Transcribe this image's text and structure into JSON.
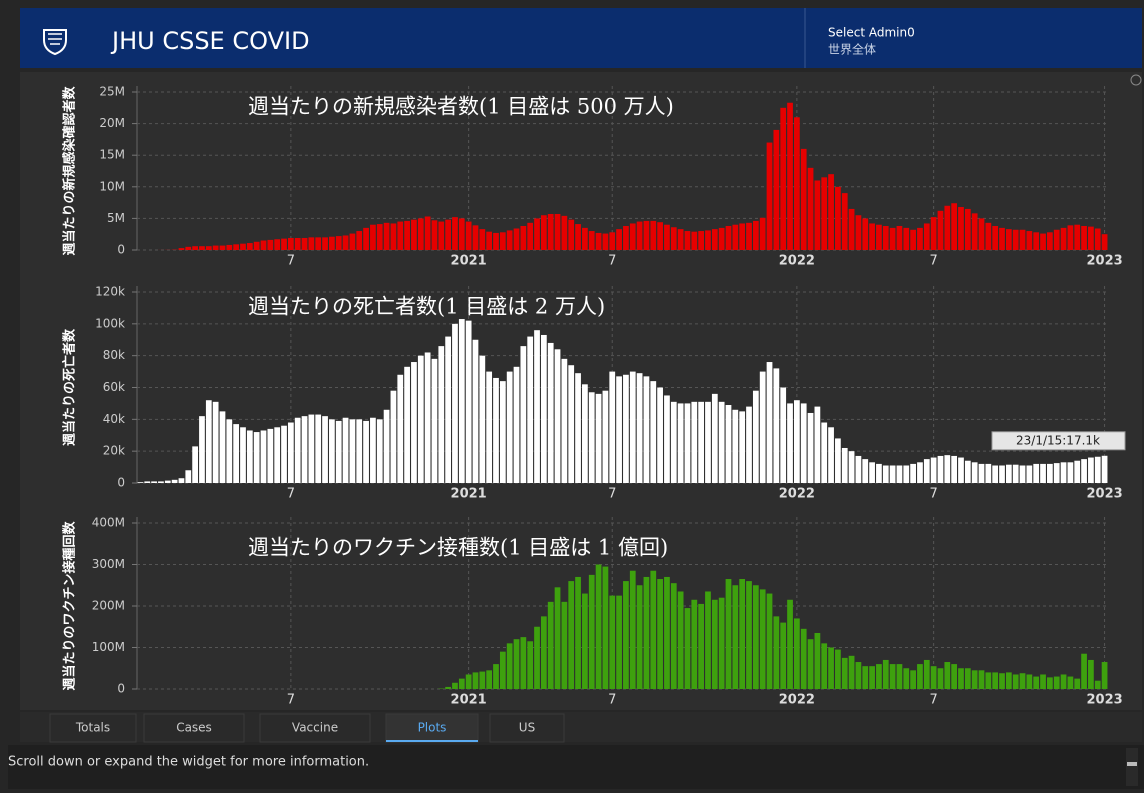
{
  "header": {
    "title": "JHU CSSE COVID",
    "selector_label": "Select Admin0",
    "selector_value": "世界全体"
  },
  "tabs": [
    "Totals",
    "Cases",
    "Vaccine",
    "Plots",
    "US"
  ],
  "active_tab": 3,
  "footer": "Scroll down or expand the widget for more information.",
  "chart_data": [
    {
      "type": "bar",
      "title": "週当たりの新規感染者数(1 目盛は 500 万人)",
      "y_label": "週当たりの新規感染確認者数",
      "color": "#e60000",
      "grid": true,
      "categories": [
        null,
        null,
        null,
        null,
        null,
        null,
        null,
        null,
        null,
        null,
        null,
        null,
        null,
        null,
        null,
        null,
        null,
        null,
        null,
        null,
        null,
        null,
        "7",
        null,
        null,
        null,
        null,
        null,
        null,
        null,
        null,
        null,
        null,
        null,
        null,
        null,
        null,
        null,
        null,
        null,
        null,
        null,
        null,
        null,
        null,
        null,
        null,
        null,
        "2021",
        null,
        null,
        null,
        null,
        null,
        null,
        null,
        null,
        null,
        null,
        null,
        null,
        null,
        null,
        null,
        null,
        null,
        null,
        null,
        null,
        "7",
        null,
        null,
        null,
        null,
        null,
        null,
        null,
        null,
        null,
        null,
        null,
        null,
        null,
        null,
        null,
        null,
        null,
        null,
        null,
        null,
        null,
        null,
        null,
        null,
        null,
        null,
        "2022",
        null,
        null,
        null,
        null,
        null,
        null,
        null,
        null,
        null,
        null,
        null,
        null,
        null,
        null,
        null,
        null,
        null,
        null,
        null,
        "7",
        null,
        null,
        null,
        null,
        null,
        null,
        null,
        null,
        null,
        null,
        null,
        null,
        null,
        null,
        null,
        null,
        null,
        null,
        null,
        null,
        null,
        null,
        null,
        null,
        "2023"
      ],
      "values": [
        0,
        0,
        0,
        10000,
        20000,
        50000,
        300000,
        500000,
        600000,
        600000,
        600000,
        700000,
        700000,
        800000,
        900000,
        1000000,
        1100000,
        1300000,
        1500000,
        1600000,
        1700000,
        1800000,
        1900000,
        1900000,
        1900000,
        2000000,
        2000000,
        2000000,
        2100000,
        2200000,
        2300000,
        2600000,
        3000000,
        3500000,
        4000000,
        4100000,
        4300000,
        4200000,
        4500000,
        4600000,
        4800000,
        5000000,
        5300000,
        4700000,
        4500000,
        4800000,
        5200000,
        5000000,
        4500000,
        3900000,
        3300000,
        2900000,
        2700000,
        2800000,
        3100000,
        3400000,
        3800000,
        4300000,
        5000000,
        5500000,
        5700000,
        5700000,
        5400000,
        4800000,
        4100000,
        3500000,
        3000000,
        2700000,
        2600000,
        2800000,
        3300000,
        3800000,
        4200000,
        4500000,
        4600000,
        4600000,
        4400000,
        4000000,
        3600000,
        3300000,
        3000000,
        2900000,
        3000000,
        3100000,
        3300000,
        3500000,
        3800000,
        4000000,
        4200000,
        4300000,
        4600000,
        5100000,
        17000000,
        19000000,
        22500000,
        23300000,
        21000000,
        16000000,
        13000000,
        11000000,
        11500000,
        12000000,
        10000000,
        9000000,
        6500000,
        5500000,
        5000000,
        4200000,
        4000000,
        3800000,
        3500000,
        3800000,
        3500000,
        3200000,
        3500000,
        4200000,
        5200000,
        6200000,
        7000000,
        7400000,
        6800000,
        6500000,
        5800000,
        5000000,
        4300000,
        3800000,
        3500000,
        3300000,
        3200000,
        3200000,
        3000000,
        2800000,
        2600000,
        2800000,
        3200000,
        3500000,
        3900000,
        4000000,
        3800000,
        3700000,
        3400000,
        2500000
      ],
      "ylim": [
        0,
        25000000
      ],
      "yticks": [
        0,
        {
          "value": 5000000,
          "label": "5M"
        },
        {
          "value": 10000000,
          "label": "10M"
        },
        {
          "value": 15000000,
          "label": "15M"
        },
        {
          "value": 20000000,
          "label": "20M"
        },
        {
          "value": 25000000,
          "label": "25M"
        }
      ]
    },
    {
      "type": "bar",
      "title": "週当たりの死亡者数(1 目盛は 2 万人)",
      "y_label": "週当たりの死亡者数",
      "color": "#ffffff",
      "grid": true,
      "annotation": "23/1/15:17.1k",
      "categories": [
        null,
        null,
        null,
        null,
        null,
        null,
        null,
        null,
        null,
        null,
        null,
        null,
        null,
        null,
        null,
        null,
        null,
        null,
        null,
        null,
        null,
        null,
        "7",
        null,
        null,
        null,
        null,
        null,
        null,
        null,
        null,
        null,
        null,
        null,
        null,
        null,
        null,
        null,
        null,
        null,
        null,
        null,
        null,
        null,
        null,
        null,
        null,
        null,
        "2021",
        null,
        null,
        null,
        null,
        null,
        null,
        null,
        null,
        null,
        null,
        null,
        null,
        null,
        null,
        null,
        null,
        null,
        null,
        null,
        null,
        "7",
        null,
        null,
        null,
        null,
        null,
        null,
        null,
        null,
        null,
        null,
        null,
        null,
        null,
        null,
        null,
        null,
        null,
        null,
        null,
        null,
        null,
        null,
        null,
        null,
        null,
        null,
        "2022",
        null,
        null,
        null,
        null,
        null,
        null,
        null,
        null,
        null,
        null,
        null,
        null,
        null,
        null,
        null,
        null,
        null,
        null,
        null,
        "7",
        null,
        null,
        null,
        null,
        null,
        null,
        null,
        null,
        null,
        null,
        null,
        null,
        null,
        null,
        null,
        null,
        null,
        null,
        null,
        null,
        null,
        null,
        null,
        null,
        "2023"
      ],
      "values": [
        500,
        1000,
        1000,
        1000,
        1500,
        2000,
        3000,
        8000,
        23000,
        42000,
        52000,
        51000,
        45000,
        40000,
        37000,
        35000,
        33000,
        32000,
        33000,
        34000,
        35000,
        36000,
        38000,
        41000,
        42000,
        43000,
        43000,
        42000,
        40000,
        39000,
        41000,
        40000,
        40000,
        39000,
        41000,
        40000,
        46000,
        58000,
        68000,
        73000,
        76000,
        80000,
        82000,
        78000,
        86000,
        92000,
        100000,
        103000,
        102000,
        90000,
        80000,
        70000,
        66000,
        64000,
        70000,
        73000,
        86000,
        92000,
        96000,
        93000,
        88000,
        84000,
        78000,
        74000,
        69000,
        62000,
        57000,
        56000,
        58000,
        70000,
        67000,
        68000,
        70000,
        69000,
        67000,
        64000,
        60000,
        55000,
        51000,
        50000,
        50000,
        51000,
        51000,
        51000,
        56000,
        51000,
        49000,
        46000,
        45000,
        48000,
        58000,
        70000,
        76000,
        72000,
        60000,
        50000,
        52000,
        50000,
        44000,
        48000,
        38000,
        35000,
        28000,
        22000,
        20000,
        17000,
        15000,
        13000,
        12000,
        11000,
        11000,
        11000,
        11000,
        12000,
        13000,
        15000,
        16000,
        17000,
        17500,
        17000,
        16000,
        14000,
        13000,
        12000,
        12000,
        11000,
        11000,
        11500,
        11500,
        11000,
        11000,
        12000,
        12000,
        12000,
        12500,
        13000,
        13000,
        14000,
        15000,
        16000,
        16500,
        17100
      ],
      "ylim": [
        0,
        120000
      ],
      "yticks": [
        0,
        {
          "value": 20000,
          "label": "20k"
        },
        {
          "value": 40000,
          "label": "40k"
        },
        {
          "value": 60000,
          "label": "60k"
        },
        {
          "value": 80000,
          "label": "80k"
        },
        {
          "value": 100000,
          "label": "100k"
        },
        {
          "value": 120000,
          "label": "120k"
        }
      ]
    },
    {
      "type": "bar",
      "title": "週当たりのワクチン接種数(1 目盛は 1 億回)",
      "y_label": "週当たりのワクチン接種回数",
      "color": "#3ea10e",
      "grid": true,
      "categories": [
        null,
        null,
        null,
        null,
        null,
        null,
        null,
        null,
        null,
        null,
        null,
        null,
        null,
        null,
        null,
        null,
        null,
        null,
        null,
        null,
        null,
        null,
        "7",
        null,
        null,
        null,
        null,
        null,
        null,
        null,
        null,
        null,
        null,
        null,
        null,
        null,
        null,
        null,
        null,
        null,
        null,
        null,
        null,
        null,
        null,
        null,
        null,
        null,
        "2021",
        null,
        null,
        null,
        null,
        null,
        null,
        null,
        null,
        null,
        null,
        null,
        null,
        null,
        null,
        null,
        null,
        null,
        null,
        null,
        null,
        "7",
        null,
        null,
        null,
        null,
        null,
        null,
        null,
        null,
        null,
        null,
        null,
        null,
        null,
        null,
        null,
        null,
        null,
        null,
        null,
        null,
        null,
        null,
        null,
        null,
        null,
        null,
        "2022",
        null,
        null,
        null,
        null,
        null,
        null,
        null,
        null,
        null,
        null,
        null,
        null,
        null,
        null,
        null,
        null,
        null,
        null,
        null,
        "7",
        null,
        null,
        null,
        null,
        null,
        null,
        null,
        null,
        null,
        null,
        null,
        null,
        null,
        null,
        null,
        null,
        null,
        null,
        null,
        null,
        null,
        null,
        null,
        null,
        "2023"
      ],
      "values": [
        0,
        0,
        0,
        0,
        0,
        0,
        0,
        0,
        0,
        0,
        0,
        0,
        0,
        0,
        0,
        0,
        0,
        0,
        0,
        0,
        0,
        0,
        0,
        0,
        0,
        0,
        0,
        0,
        0,
        0,
        0,
        0,
        0,
        0,
        0,
        0,
        0,
        0,
        0,
        0,
        0,
        0,
        0,
        0,
        1000000,
        5000000,
        15000000,
        25000000,
        35000000,
        40000000,
        42000000,
        45000000,
        60000000,
        90000000,
        110000000,
        120000000,
        125000000,
        115000000,
        150000000,
        175000000,
        210000000,
        245000000,
        210000000,
        260000000,
        270000000,
        230000000,
        275000000,
        300000000,
        295000000,
        225000000,
        225000000,
        260000000,
        285000000,
        250000000,
        270000000,
        285000000,
        265000000,
        270000000,
        255000000,
        235000000,
        195000000,
        215000000,
        205000000,
        235000000,
        215000000,
        220000000,
        265000000,
        250000000,
        265000000,
        260000000,
        250000000,
        240000000,
        230000000,
        175000000,
        160000000,
        215000000,
        170000000,
        145000000,
        120000000,
        135000000,
        110000000,
        100000000,
        95000000,
        75000000,
        80000000,
        65000000,
        55000000,
        55000000,
        60000000,
        70000000,
        60000000,
        60000000,
        50000000,
        45000000,
        60000000,
        70000000,
        55000000,
        50000000,
        65000000,
        60000000,
        50000000,
        50000000,
        45000000,
        45000000,
        40000000,
        40000000,
        38000000,
        40000000,
        35000000,
        38000000,
        35000000,
        30000000,
        35000000,
        28000000,
        30000000,
        35000000,
        30000000,
        25000000,
        85000000,
        70000000,
        20000000,
        65000000
      ],
      "ylim": [
        0,
        400000000
      ],
      "yticks": [
        0,
        {
          "value": 100000000,
          "label": "100M"
        },
        {
          "value": 200000000,
          "label": "200M"
        },
        {
          "value": 300000000,
          "label": "300M"
        },
        {
          "value": 400000000,
          "label": "400M"
        }
      ]
    }
  ]
}
